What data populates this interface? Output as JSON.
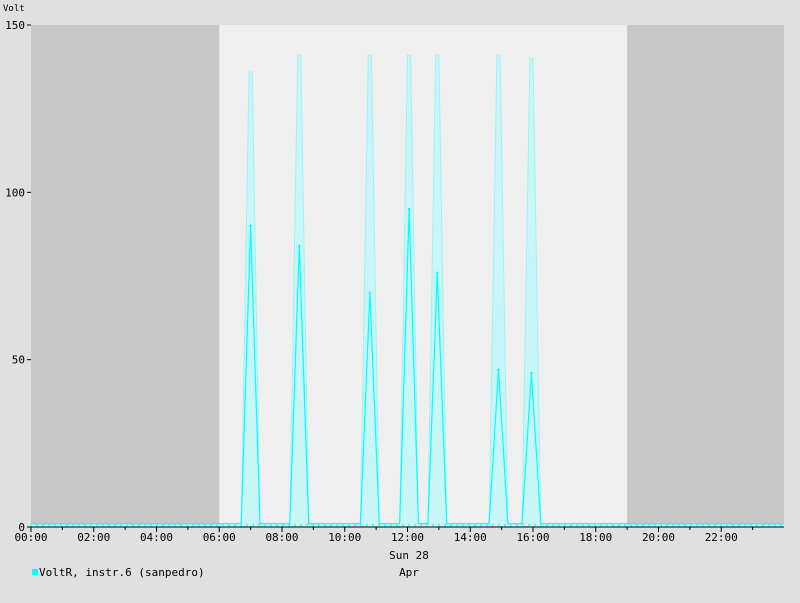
{
  "chart_data": {
    "type": "line",
    "ylabel": "Volt",
    "ylim": [
      0,
      150
    ],
    "xlim": [
      0,
      24
    ],
    "y_ticks": [
      0,
      50,
      100,
      150
    ],
    "x_ticks": [
      "00:00",
      "02:00",
      "04:00",
      "06:00",
      "08:00",
      "10:00",
      "12:00",
      "14:00",
      "16:00",
      "18:00",
      "20:00",
      "22:00"
    ],
    "day_label": "Sun 28",
    "month_label": "Apr",
    "night_shading": [
      [
        0,
        6.0
      ],
      [
        19.0,
        24
      ]
    ],
    "colors": {
      "background": "#e0e0e0",
      "plot_day": "#efefef",
      "plot_night": "#c8c8c8",
      "grid": "#a0a0a0",
      "max": "#c8f6f6",
      "mean": "#00ffff"
    },
    "series": [
      {
        "name": "VoltR, instr.6 (sanpedro)",
        "peaks": [
          {
            "t": 7.0,
            "max": 136,
            "mean": 90
          },
          {
            "t": 8.55,
            "max": 141,
            "mean": 84
          },
          {
            "t": 10.8,
            "max": 141,
            "mean": 70
          },
          {
            "t": 12.05,
            "max": 141,
            "mean": 95
          },
          {
            "t": 12.95,
            "max": 141,
            "mean": 76
          },
          {
            "t": 14.9,
            "max": 141,
            "mean": 47
          },
          {
            "t": 15.95,
            "max": 140,
            "mean": 46
          }
        ],
        "baseline": 1
      }
    ]
  }
}
